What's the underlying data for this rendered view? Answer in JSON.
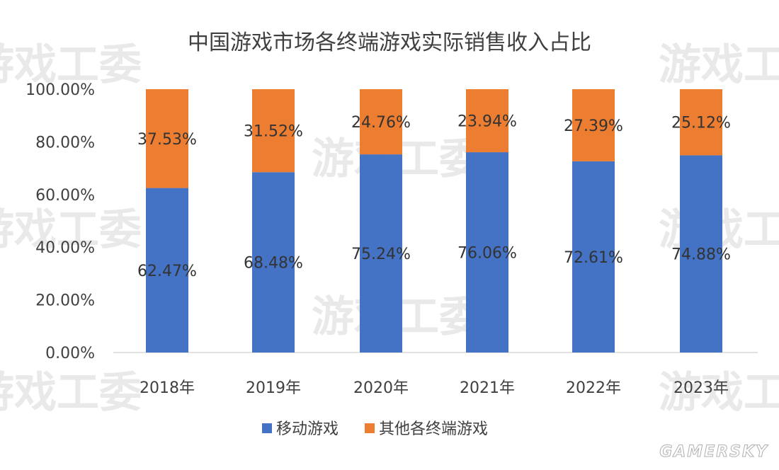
{
  "chart_data": {
    "type": "bar",
    "stacked": true,
    "title": "中国游戏市场各终端游戏实际销售收入占比",
    "categories": [
      "2018年",
      "2019年",
      "2020年",
      "2021年",
      "2022年",
      "2023年"
    ],
    "series": [
      {
        "name": "移动游戏",
        "values": [
          62.47,
          68.48,
          75.24,
          76.06,
          72.61,
          74.88
        ],
        "labels": [
          "62.47%",
          "68.48%",
          "75.24%",
          "76.06%",
          "72.61%",
          "74.88%"
        ],
        "color": "#4472C4"
      },
      {
        "name": "其他各终端游戏",
        "values": [
          37.53,
          31.52,
          24.76,
          23.94,
          27.39,
          25.12
        ],
        "labels": [
          "37.53%",
          "31.52%",
          "24.76%",
          "23.94%",
          "27.39%",
          "25.12%"
        ],
        "color": "#ED7D31"
      }
    ],
    "yticks": [
      "0.00%",
      "20.00%",
      "40.00%",
      "60.00%",
      "80.00%",
      "100.00%"
    ],
    "ylim": [
      0,
      100
    ],
    "xlabel": "",
    "ylabel": "",
    "grid": false,
    "legend_position": "bottom"
  },
  "watermark": "游戏工委",
  "brand": "GAMERSKY"
}
